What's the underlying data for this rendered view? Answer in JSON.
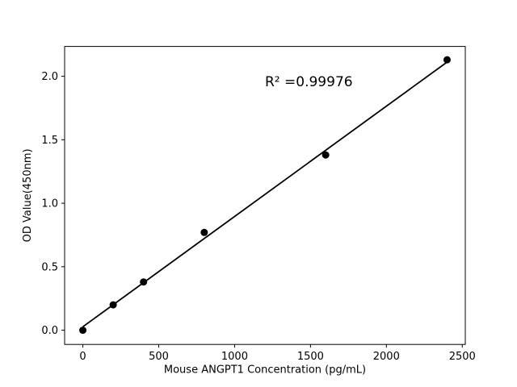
{
  "chart_data": {
    "type": "scatter",
    "title": "",
    "xlabel": "Mouse ANGPT1 Concentration (pg/mL)",
    "ylabel": "OD Value(450nm)",
    "x": [
      0,
      200,
      400,
      800,
      1600,
      2400
    ],
    "y": [
      0.0,
      0.2,
      0.38,
      0.77,
      1.38,
      2.13
    ],
    "fit_line": {
      "x0": 0,
      "y0": 0.027,
      "x1": 2400,
      "y1": 2.112
    },
    "annotation": {
      "text": "R² =0.99976",
      "x": 1200,
      "y": 1.92
    },
    "xlim": [
      -120,
      2520
    ],
    "ylim": [
      -0.112,
      2.235
    ],
    "x_ticks": {
      "values": [
        0,
        500,
        1000,
        1500,
        2000,
        2500
      ],
      "labels": [
        "0",
        "500",
        "1000",
        "1500",
        "2000",
        "2500"
      ]
    },
    "y_ticks": {
      "values": [
        0,
        0.5,
        1,
        1.5,
        2
      ],
      "labels": [
        "0.0",
        "0.5",
        "1.0",
        "1.5",
        "2.0"
      ]
    },
    "grid": false,
    "legend": "none",
    "marker_color": "#000000",
    "line_color": "#000000",
    "background_color": "#ffffff"
  }
}
